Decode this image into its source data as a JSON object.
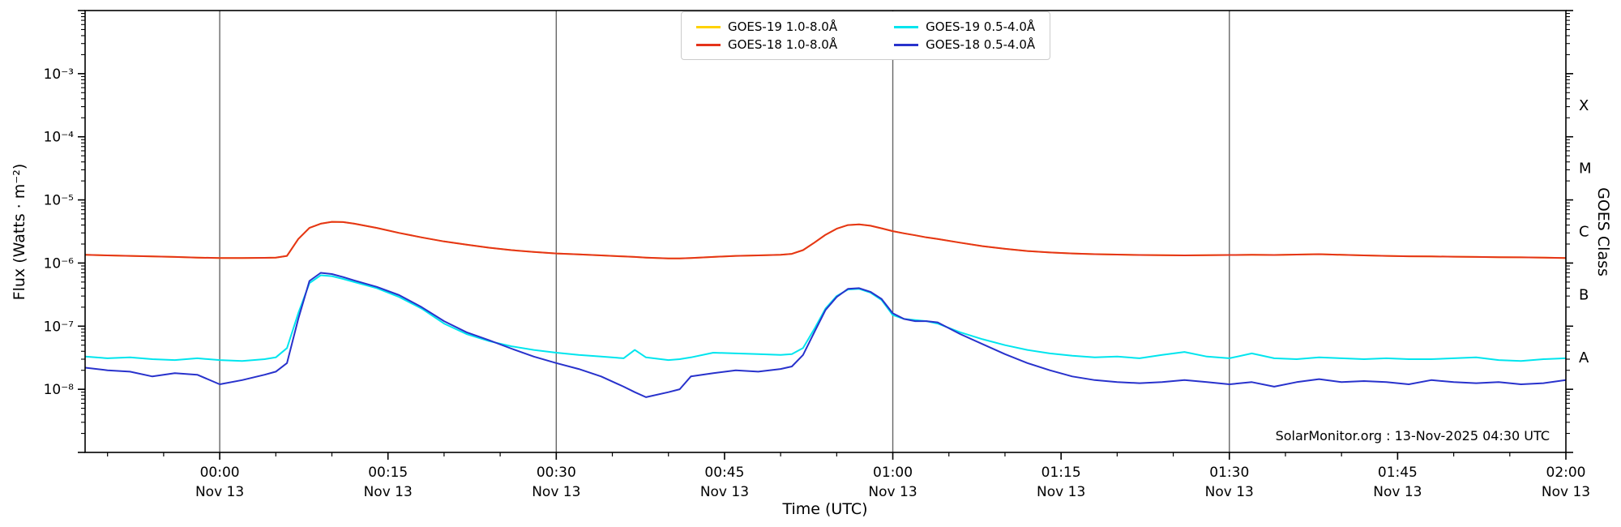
{
  "chart_data": {
    "type": "line",
    "xlabel": "Time (UTC)",
    "ylabel": "Flux (Watts · m⁻²)",
    "ylabel_right": "GOES Class",
    "annotation": "SolarMonitor.org : 13-Nov-2025 04:30 UTC",
    "x_unit": "minutes relative to 00:00 UTC Nov 13",
    "xlim": [
      -12,
      120
    ],
    "ylim_log10": [
      -9,
      -2
    ],
    "grid": "vertical-only",
    "legend_position": "top-center",
    "colors": {
      "frame": "#000000",
      "gridline": "#666666",
      "goes19_long": "#ffd200",
      "goes18_long": "#e5331a",
      "goes19_short": "#00e5ee",
      "goes18_short": "#2832cc"
    },
    "vertical_gridlines_min": [
      0,
      30,
      60,
      90
    ],
    "x_minor_step_min": 5,
    "x_major_ticks": [
      {
        "min": 0,
        "label": "00:00",
        "sub": "Nov 13"
      },
      {
        "min": 15,
        "label": "00:15",
        "sub": "Nov 13"
      },
      {
        "min": 30,
        "label": "00:30",
        "sub": "Nov 13"
      },
      {
        "min": 45,
        "label": "00:45",
        "sub": "Nov 13"
      },
      {
        "min": 60,
        "label": "01:00",
        "sub": "Nov 13"
      },
      {
        "min": 75,
        "label": "01:15",
        "sub": "Nov 13"
      },
      {
        "min": 90,
        "label": "01:30",
        "sub": "Nov 13"
      },
      {
        "min": 105,
        "label": "01:45",
        "sub": "Nov 13"
      },
      {
        "min": 120,
        "label": "02:00",
        "sub": "Nov 13"
      }
    ],
    "y_major_ticks": [
      {
        "exp": -3,
        "label": "10⁻³"
      },
      {
        "exp": -4,
        "label": "10⁻⁴"
      },
      {
        "exp": -5,
        "label": "10⁻⁵"
      },
      {
        "exp": -6,
        "label": "10⁻⁶"
      },
      {
        "exp": -7,
        "label": "10⁻⁷"
      },
      {
        "exp": -8,
        "label": "10⁻⁸"
      }
    ],
    "goes_classes": [
      {
        "label": "X",
        "mid_exp": -3.5
      },
      {
        "label": "M",
        "mid_exp": -4.5
      },
      {
        "label": "C",
        "mid_exp": -5.5
      },
      {
        "label": "B",
        "mid_exp": -6.5
      },
      {
        "label": "A",
        "mid_exp": -7.5
      }
    ],
    "legend": [
      {
        "label": "GOES-19 1.0-8.0Å",
        "color": "#ffd200"
      },
      {
        "label": "GOES-19 0.5-4.0Å",
        "color": "#00e5ee"
      },
      {
        "label": "GOES-18 1.0-8.0Å",
        "color": "#e5331a"
      },
      {
        "label": "GOES-18 0.5-4.0Å",
        "color": "#2832cc"
      }
    ],
    "x_minutes": [
      -12,
      -10,
      -8,
      -6,
      -4,
      -2,
      0,
      2,
      4,
      5,
      6,
      7,
      8,
      9,
      10,
      11,
      12,
      14,
      16,
      18,
      20,
      22,
      24,
      26,
      28,
      30,
      32,
      34,
      36,
      37,
      38,
      40,
      41,
      42,
      44,
      46,
      48,
      50,
      51,
      52,
      53,
      54,
      55,
      56,
      57,
      58,
      59,
      60,
      61,
      62,
      63,
      64,
      66,
      68,
      70,
      72,
      74,
      76,
      78,
      80,
      82,
      84,
      86,
      88,
      90,
      92,
      94,
      96,
      98,
      100,
      102,
      104,
      106,
      108,
      110,
      112,
      114,
      116,
      118,
      120
    ],
    "series": [
      {
        "id": "goes19-long",
        "name": "GOES-19 1.0-8.0Å",
        "color": "#ffd200",
        "note": "overlaps GOES-18 1.0-8.0Å trace (hidden beneath red)",
        "y": [
          1.35e-06,
          1.32e-06,
          1.3e-06,
          1.27e-06,
          1.25e-06,
          1.22e-06,
          1.2e-06,
          1.2e-06,
          1.21e-06,
          1.22e-06,
          1.3e-06,
          2.4e-06,
          3.6e-06,
          4.2e-06,
          4.5e-06,
          4.45e-06,
          4.2e-06,
          3.6e-06,
          3e-06,
          2.55e-06,
          2.2e-06,
          1.95e-06,
          1.75e-06,
          1.6e-06,
          1.5e-06,
          1.42e-06,
          1.37e-06,
          1.32e-06,
          1.27e-06,
          1.25e-06,
          1.22e-06,
          1.18e-06,
          1.18e-06,
          1.2e-06,
          1.25e-06,
          1.3e-06,
          1.32e-06,
          1.35e-06,
          1.4e-06,
          1.6e-06,
          2.1e-06,
          2.8e-06,
          3.5e-06,
          4e-06,
          4.1e-06,
          3.9e-06,
          3.55e-06,
          3.2e-06,
          2.95e-06,
          2.75e-06,
          2.55e-06,
          2.4e-06,
          2.1e-06,
          1.85e-06,
          1.68e-06,
          1.55e-06,
          1.47e-06,
          1.42e-06,
          1.38e-06,
          1.36e-06,
          1.34e-06,
          1.33e-06,
          1.32e-06,
          1.33e-06,
          1.34e-06,
          1.35e-06,
          1.34e-06,
          1.36e-06,
          1.38e-06,
          1.35e-06,
          1.32e-06,
          1.3e-06,
          1.28e-06,
          1.27e-06,
          1.26e-06,
          1.25e-06,
          1.24e-06,
          1.23e-06,
          1.22e-06,
          1.2e-06
        ]
      },
      {
        "id": "goes18-long",
        "name": "GOES-18 1.0-8.0Å",
        "color": "#e5331a",
        "y": [
          1.35e-06,
          1.32e-06,
          1.3e-06,
          1.27e-06,
          1.25e-06,
          1.22e-06,
          1.2e-06,
          1.2e-06,
          1.21e-06,
          1.22e-06,
          1.3e-06,
          2.4e-06,
          3.6e-06,
          4.2e-06,
          4.5e-06,
          4.45e-06,
          4.2e-06,
          3.6e-06,
          3e-06,
          2.55e-06,
          2.2e-06,
          1.95e-06,
          1.75e-06,
          1.6e-06,
          1.5e-06,
          1.42e-06,
          1.37e-06,
          1.32e-06,
          1.27e-06,
          1.25e-06,
          1.22e-06,
          1.18e-06,
          1.18e-06,
          1.2e-06,
          1.25e-06,
          1.3e-06,
          1.32e-06,
          1.35e-06,
          1.4e-06,
          1.6e-06,
          2.1e-06,
          2.8e-06,
          3.5e-06,
          4e-06,
          4.1e-06,
          3.9e-06,
          3.55e-06,
          3.2e-06,
          2.95e-06,
          2.75e-06,
          2.55e-06,
          2.4e-06,
          2.1e-06,
          1.85e-06,
          1.68e-06,
          1.55e-06,
          1.47e-06,
          1.42e-06,
          1.38e-06,
          1.36e-06,
          1.34e-06,
          1.33e-06,
          1.32e-06,
          1.33e-06,
          1.34e-06,
          1.35e-06,
          1.34e-06,
          1.36e-06,
          1.38e-06,
          1.35e-06,
          1.32e-06,
          1.3e-06,
          1.28e-06,
          1.27e-06,
          1.26e-06,
          1.25e-06,
          1.24e-06,
          1.23e-06,
          1.22e-06,
          1.2e-06
        ]
      },
      {
        "id": "goes19-short",
        "name": "GOES-19 0.5-4.0Å",
        "color": "#00e5ee",
        "y": [
          3.3e-08,
          3.1e-08,
          3.2e-08,
          3e-08,
          2.9e-08,
          3.1e-08,
          2.9e-08,
          2.8e-08,
          3e-08,
          3.2e-08,
          4.5e-08,
          1.6e-07,
          4.8e-07,
          6.4e-07,
          6.2e-07,
          5.6e-07,
          5e-07,
          4e-07,
          2.9e-07,
          1.9e-07,
          1.1e-07,
          7.5e-08,
          5.8e-08,
          4.8e-08,
          4.2e-08,
          3.8e-08,
          3.5e-08,
          3.3e-08,
          3.1e-08,
          4.2e-08,
          3.2e-08,
          2.9e-08,
          3e-08,
          3.2e-08,
          3.8e-08,
          3.7e-08,
          3.6e-08,
          3.5e-08,
          3.6e-08,
          4.5e-08,
          9e-08,
          1.9e-07,
          3e-07,
          3.8e-07,
          3.9e-07,
          3.4e-07,
          2.6e-07,
          1.5e-07,
          1.3e-07,
          1.25e-07,
          1.2e-07,
          1.1e-07,
          8e-08,
          6.2e-08,
          5e-08,
          4.2e-08,
          3.7e-08,
          3.4e-08,
          3.2e-08,
          3.3e-08,
          3.1e-08,
          3.5e-08,
          3.9e-08,
          3.3e-08,
          3.1e-08,
          3.7e-08,
          3.1e-08,
          3e-08,
          3.2e-08,
          3.1e-08,
          3e-08,
          3.1e-08,
          3e-08,
          3e-08,
          3.1e-08,
          3.2e-08,
          2.9e-08,
          2.8e-08,
          3e-08,
          3.1e-08
        ]
      },
      {
        "id": "goes18-short",
        "name": "GOES-18 0.5-4.0Å",
        "color": "#2832cc",
        "y": [
          2.2e-08,
          2e-08,
          1.9e-08,
          1.6e-08,
          1.8e-08,
          1.7e-08,
          1.2e-08,
          1.4e-08,
          1.7e-08,
          1.9e-08,
          2.6e-08,
          1.3e-07,
          5.2e-07,
          7e-07,
          6.7e-07,
          6e-07,
          5.3e-07,
          4.2e-07,
          3.1e-07,
          2e-07,
          1.2e-07,
          8e-08,
          6e-08,
          4.4e-08,
          3.3e-08,
          2.6e-08,
          2.1e-08,
          1.6e-08,
          1.1e-08,
          9e-09,
          7.5e-09,
          9e-09,
          1e-08,
          1.6e-08,
          1.8e-08,
          2e-08,
          1.9e-08,
          2.1e-08,
          2.3e-08,
          3.5e-08,
          8e-08,
          1.8e-07,
          2.9e-07,
          3.9e-07,
          4e-07,
          3.5e-07,
          2.7e-07,
          1.6e-07,
          1.3e-07,
          1.2e-07,
          1.2e-07,
          1.15e-07,
          7.5e-08,
          5.2e-08,
          3.6e-08,
          2.6e-08,
          2e-08,
          1.6e-08,
          1.4e-08,
          1.3e-08,
          1.25e-08,
          1.3e-08,
          1.4e-08,
          1.3e-08,
          1.2e-08,
          1.3e-08,
          1.1e-08,
          1.3e-08,
          1.45e-08,
          1.3e-08,
          1.35e-08,
          1.3e-08,
          1.2e-08,
          1.4e-08,
          1.3e-08,
          1.25e-08,
          1.3e-08,
          1.2e-08,
          1.25e-08,
          1.4e-08
        ]
      }
    ]
  }
}
